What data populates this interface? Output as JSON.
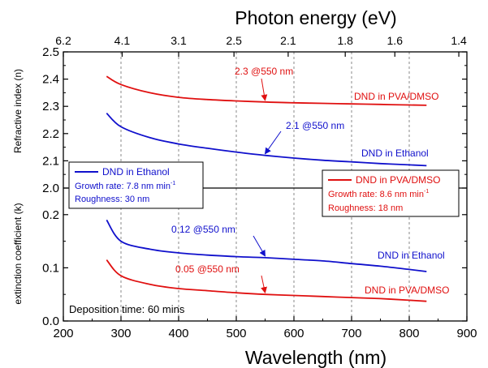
{
  "chart_data": {
    "type": "line",
    "x_axis": {
      "label": "Wavelength (nm)",
      "lim": [
        200,
        900
      ],
      "ticks": [
        "200",
        "300",
        "400",
        "500",
        "600",
        "700",
        "800",
        "900"
      ]
    },
    "top_axis": {
      "label": "Photon energy (eV)",
      "ticks": [
        {
          "label": "6.2",
          "at_wavelength": 200
        },
        {
          "label": "4.1",
          "at_wavelength": 302
        },
        {
          "label": "3.1",
          "at_wavelength": 400
        },
        {
          "label": "2.5",
          "at_wavelength": 496
        },
        {
          "label": "2.1",
          "at_wavelength": 590
        },
        {
          "label": "1.8",
          "at_wavelength": 689
        },
        {
          "label": "1.6",
          "at_wavelength": 775
        },
        {
          "label": "1.4",
          "at_wavelength": 886
        }
      ]
    },
    "panels": [
      {
        "id": "n",
        "ylabel": "Refractive index (n)",
        "ylim": [
          2.0,
          2.5
        ],
        "yticks": [
          "2.0",
          "2.1",
          "2.2",
          "2.3",
          "2.4",
          "2.5"
        ],
        "series": [
          {
            "name": "DND in PVA/DMSO",
            "color": "#e01010",
            "x": [
              275,
              300,
              350,
              400,
              450,
              500,
              550,
              600,
              650,
              700,
              750,
              800,
              830
            ],
            "y": [
              2.41,
              2.38,
              2.35,
              2.333,
              2.325,
              2.32,
              2.316,
              2.313,
              2.311,
              2.309,
              2.307,
              2.305,
              2.304
            ]
          },
          {
            "name": "DND in Ethanol",
            "color": "#1010cc",
            "x": [
              275,
              300,
              350,
              400,
              450,
              500,
              550,
              600,
              650,
              700,
              750,
              800,
              830
            ],
            "y": [
              2.275,
              2.225,
              2.185,
              2.162,
              2.146,
              2.132,
              2.12,
              2.11,
              2.102,
              2.096,
              2.09,
              2.085,
              2.082
            ]
          }
        ]
      },
      {
        "id": "k",
        "ylabel": "extinction coefficient (k)",
        "ylim": [
          0.0,
          0.25
        ],
        "yticks": [
          "0.0",
          "0.1",
          "0.2"
        ],
        "series": [
          {
            "name": "DND in Ethanol",
            "color": "#1010cc",
            "x": [
              275,
              300,
              350,
              400,
              450,
              500,
              550,
              600,
              650,
              700,
              750,
              800,
              830
            ],
            "y": [
              0.19,
              0.15,
              0.135,
              0.128,
              0.124,
              0.121,
              0.119,
              0.116,
              0.113,
              0.108,
              0.103,
              0.097,
              0.093
            ]
          },
          {
            "name": "DND in PVA/DMSO",
            "color": "#e01010",
            "x": [
              275,
              300,
              350,
              400,
              450,
              500,
              550,
              600,
              650,
              700,
              750,
              800,
              830
            ],
            "y": [
              0.115,
              0.085,
              0.069,
              0.061,
              0.057,
              0.053,
              0.05,
              0.048,
              0.046,
              0.044,
              0.042,
              0.039,
              0.037
            ]
          }
        ]
      }
    ],
    "annotations": [
      {
        "text": "2.3 @550 nm",
        "color": "#e01010",
        "at": [
          550,
          2.316
        ],
        "panel": "n"
      },
      {
        "text": "2.1 @550 nm",
        "color": "#1010cc",
        "at": [
          550,
          2.12
        ],
        "panel": "n"
      },
      {
        "text": "0.12 @550 nm",
        "color": "#1010cc",
        "at": [
          550,
          0.119
        ],
        "panel": "k"
      },
      {
        "text": "0.05 @550 nm",
        "color": "#e01010",
        "at": [
          550,
          0.05
        ],
        "panel": "k"
      }
    ],
    "curve_labels": {
      "n_pva": "DND in PVA/DMSO",
      "n_eth": "DND in Ethanol",
      "k_eth": "DND in Ethanol",
      "k_pva": "DND in PVA/DMSO"
    },
    "legends": {
      "left": {
        "name": "DND in Ethanol",
        "color": "#1010cc",
        "growth_rate": "Growth rate: 7.8 nm min",
        "roughness": "Roughness: 30 nm"
      },
      "right": {
        "name": "DND in PVA/DMSO",
        "color": "#e01010",
        "growth_rate": "Growth rate: 8.6 nm min",
        "roughness": "Roughness: 18 nm"
      },
      "superscript": "-1"
    },
    "deposition_note": "Deposition time: 60 mins",
    "grid": "vertical dashed"
  }
}
